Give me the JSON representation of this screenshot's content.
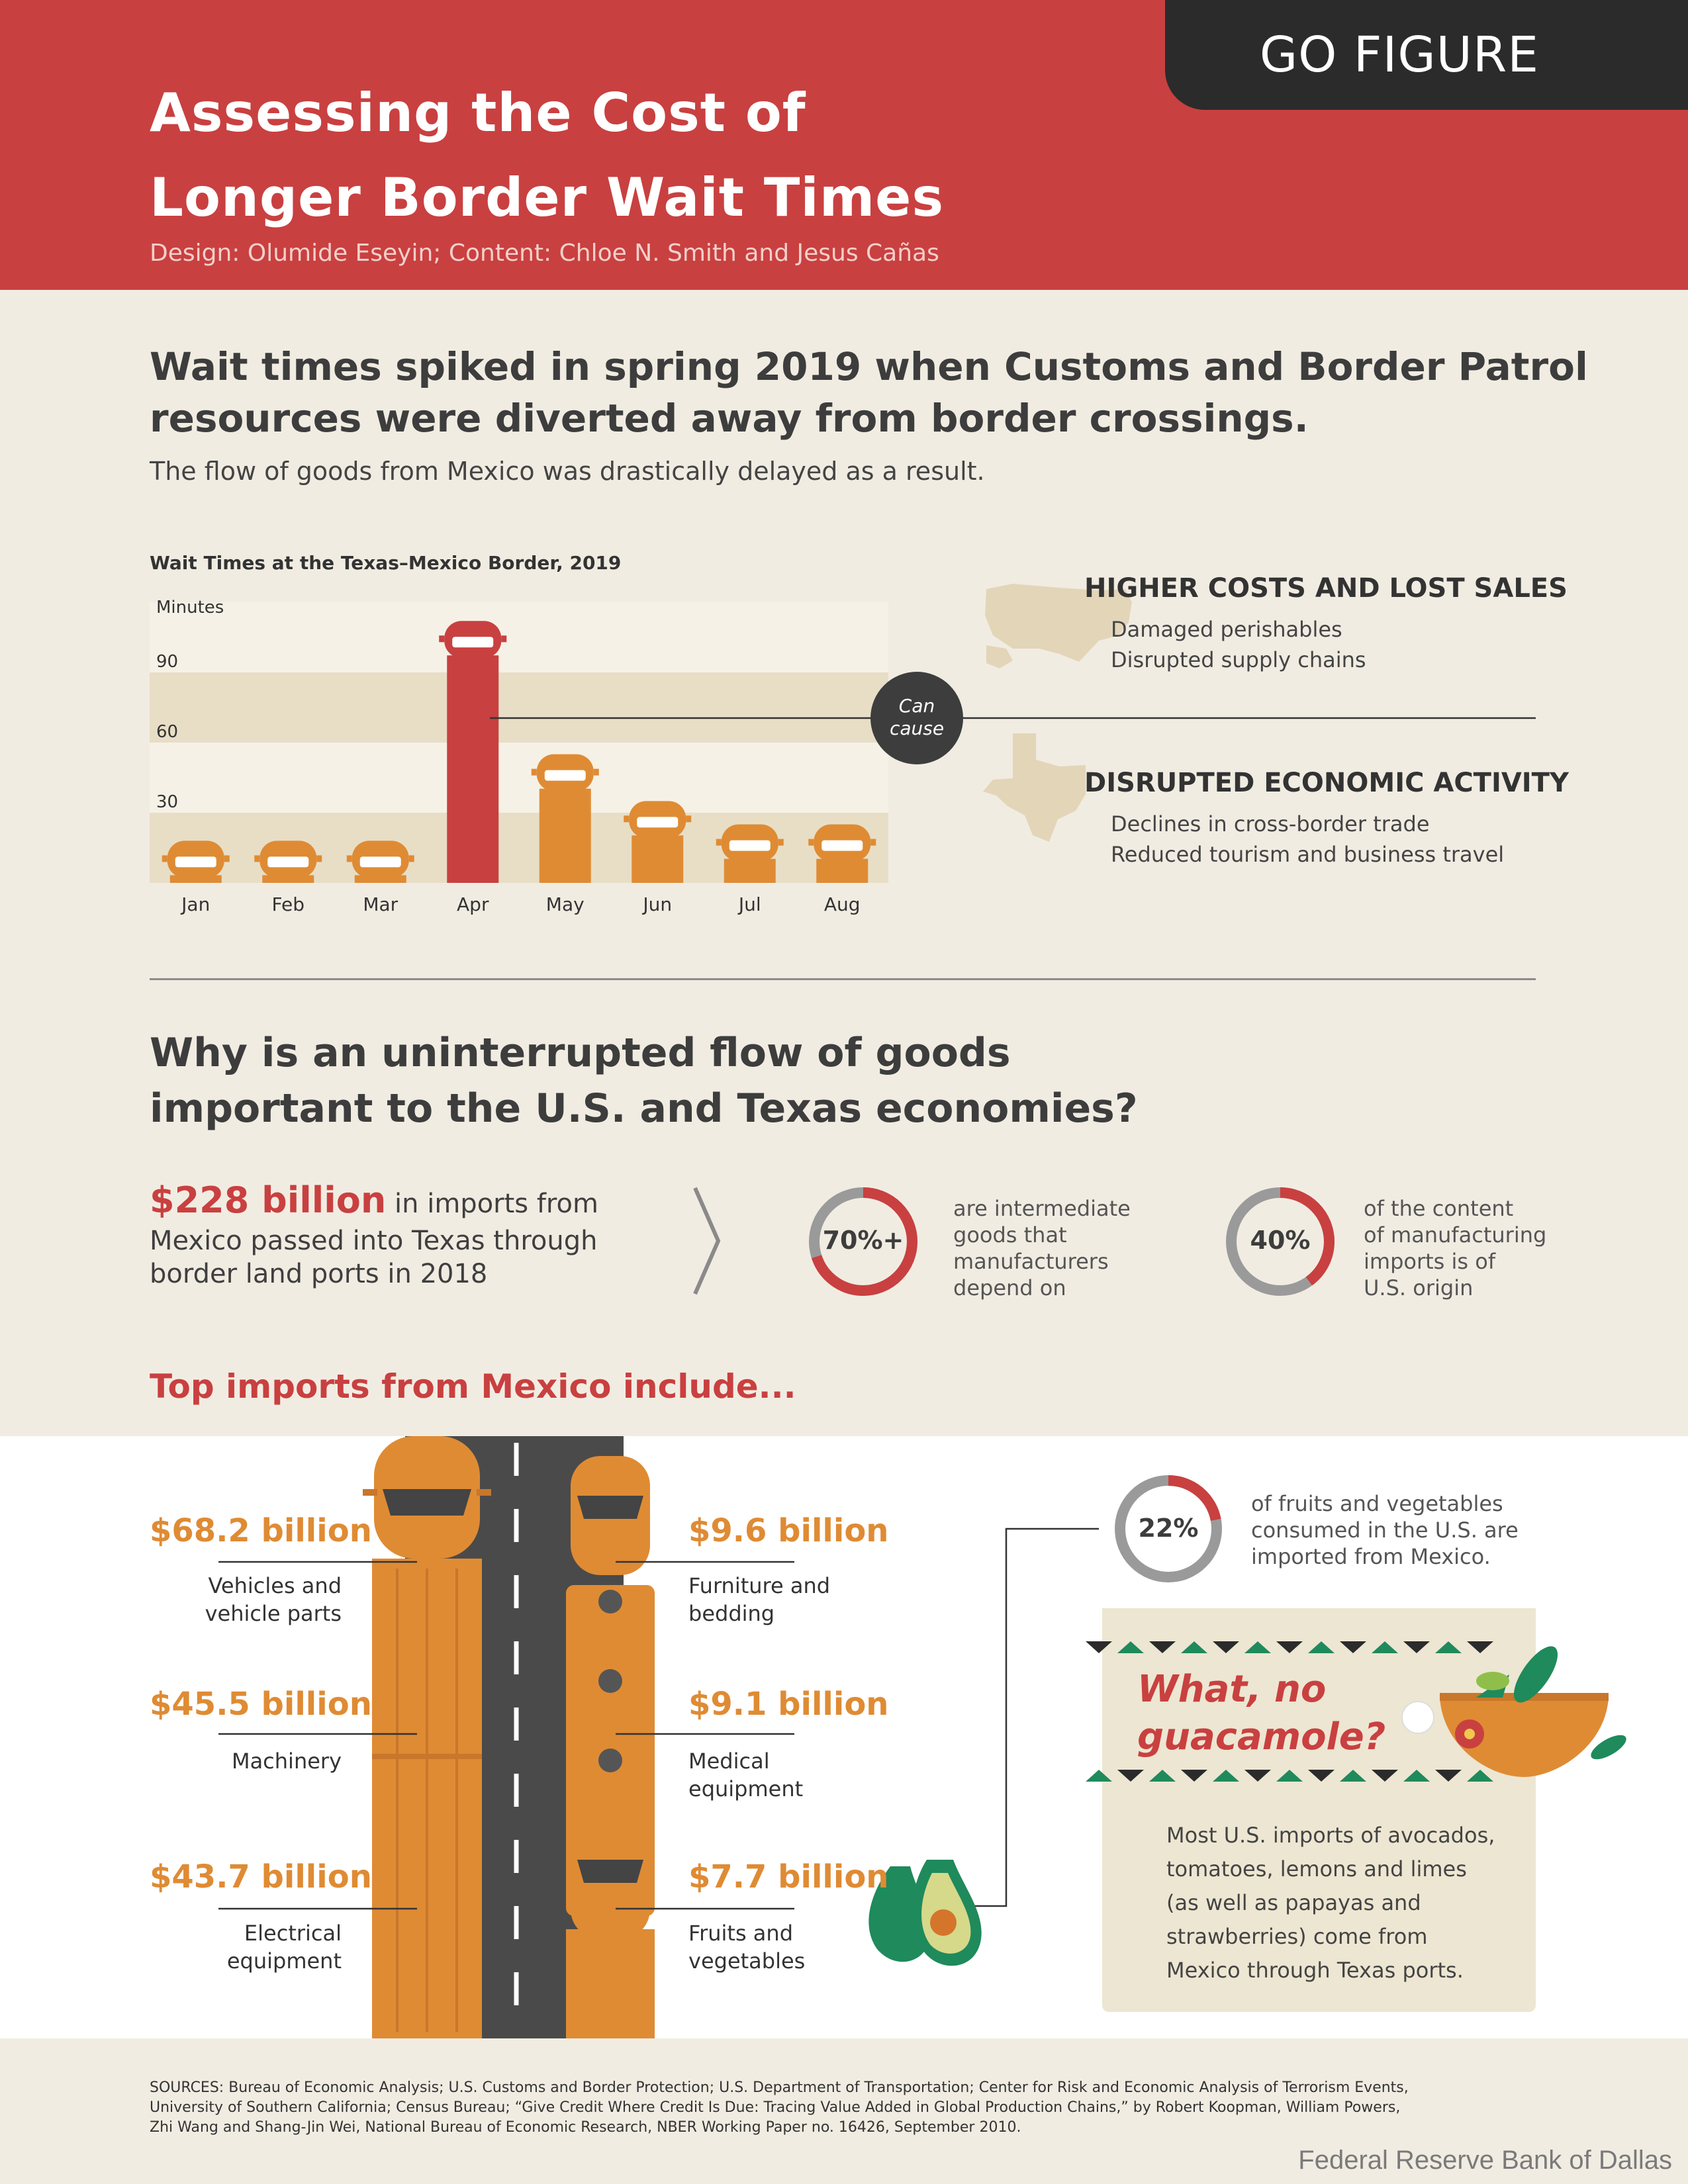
{
  "header": {
    "badge": "GO FIGURE",
    "title_line1": "Assessing the Cost of",
    "title_line2": "Longer Border Wait Times",
    "credits": "Design: Olumide Eseyin; Content: Chloe N. Smith and Jesus Cañas"
  },
  "section1": {
    "headline_line1": "Wait times spiked in spring 2019 when Customs and Border Patrol",
    "headline_line2": "resources were diverted away from border crossings.",
    "subhead": "The flow of goods from Mexico was drastically delayed as a result."
  },
  "colors": {
    "brand_red": "#c94040",
    "truck_orange": "#df8b34",
    "dark": "#2b2b2b",
    "green": "#1f8a5c"
  },
  "chart_data": {
    "type": "bar",
    "title": "Wait Times at the Texas–Mexico Border, 2019",
    "ylabel": "Minutes",
    "categories": [
      "Jan",
      "Feb",
      "Mar",
      "Apr",
      "May",
      "Jun",
      "Jul",
      "Aug"
    ],
    "values": [
      18,
      18,
      18,
      112,
      55,
      35,
      25,
      25
    ],
    "yticks": [
      30,
      60,
      90
    ],
    "ylim": [
      0,
      120
    ],
    "highlight_category": "Apr",
    "highlight_color": "#c94040",
    "bar_color": "#df8b34"
  },
  "causes": {
    "connector": "Can cause",
    "connector_line1": "Can",
    "connector_line2": "cause",
    "topic1": {
      "heading": "HIGHER COSTS AND LOST SALES",
      "items": [
        "Damaged perishables",
        "Disrupted supply chains"
      ],
      "icon": "us-map-icon"
    },
    "topic2": {
      "heading": "DISRUPTED ECONOMIC ACTIVITY",
      "items": [
        "Declines in cross-border trade",
        "Reduced tourism and business travel"
      ],
      "icon": "texas-map-icon"
    }
  },
  "section2": {
    "headline_line1": "Why is an uninterrupted flow of goods",
    "headline_line2": "important to the U.S. and Texas economies?",
    "amount": "$228 billion",
    "amount_text_1": " in imports from",
    "amount_text_2": "Mexico passed into Texas through",
    "amount_text_3": "border land ports in 2018",
    "stat1": {
      "value": "70%+",
      "fraction": 0.7,
      "lines": [
        "are intermediate",
        "goods that",
        "manufacturers",
        "depend on"
      ]
    },
    "stat2": {
      "value": "40%",
      "fraction": 0.4,
      "lines": [
        "of the content",
        "of manufacturing",
        "imports is of",
        "U.S. origin"
      ]
    }
  },
  "imports": {
    "heading": "Top imports from Mexico include...",
    "left": [
      {
        "amount": "$68.2 billion",
        "lines": [
          "Vehicles and",
          "vehicle parts"
        ]
      },
      {
        "amount": "$45.5 billion",
        "lines": [
          "Machinery"
        ]
      },
      {
        "amount": "$43.7 billion",
        "lines": [
          "Electrical",
          "equipment"
        ]
      }
    ],
    "right": [
      {
        "amount": "$9.6 billion",
        "lines": [
          "Furniture and",
          "bedding"
        ]
      },
      {
        "amount": "$9.1 billion",
        "lines": [
          "Medical",
          "equipment"
        ]
      },
      {
        "amount": "$7.7 billion",
        "lines": [
          "Fruits and",
          "vegetables"
        ]
      }
    ],
    "produce_stat": {
      "value": "22%",
      "fraction": 0.22,
      "lines": [
        "of fruits and vegetables",
        "consumed in the U.S. are",
        "imported from Mexico."
      ]
    }
  },
  "guac": {
    "title_line1": "What, no",
    "title_line2": "guacamole?",
    "body": [
      "Most U.S. imports of avocados,",
      "tomatoes, lemons and limes",
      "(as well as papayas and",
      "strawberries) come from",
      "Mexico through Texas ports."
    ]
  },
  "footer": {
    "sources_1": "SOURCES: Bureau of Economic Analysis; U.S. Customs and Border Protection; U.S. Department of Transportation; Center for Risk and Economic Analysis of Terrorism Events,",
    "sources_2": "University of Southern California; Census Bureau; “Give Credit Where Credit Is Due: Tracing Value Added in Global Production Chains,” by Robert Koopman, William Powers,",
    "sources_3": "Zhi Wang and Shang-Jin Wei, National Bureau of Economic Research, NBER Working Paper no. 16426, September 2010.",
    "publisher": "Federal Reserve Bank of Dallas"
  }
}
